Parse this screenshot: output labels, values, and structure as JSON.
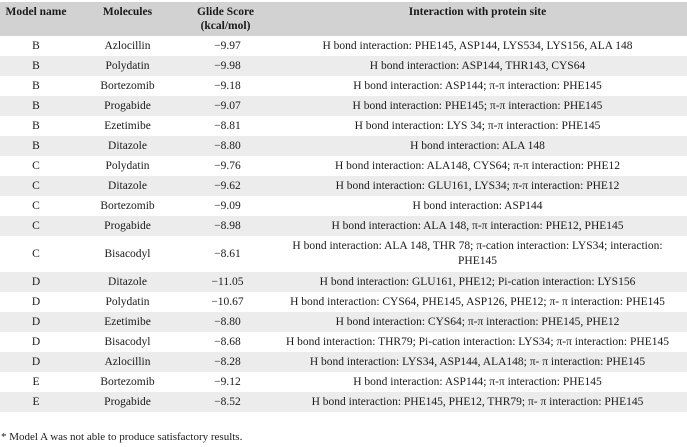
{
  "columns": [
    "Model name",
    "Molecules",
    "Glide Score (kcal/mol)",
    "Interaction with protein site"
  ],
  "rows": [
    {
      "model": "B",
      "molecule": "Azlocillin",
      "score": "−9.97",
      "interaction": "H bond interaction: PHE145, ASP144, LYS534, LYS156, ALA 148"
    },
    {
      "model": "B",
      "molecule": "Polydatin",
      "score": "−9.98",
      "interaction": "H bond interaction:  ASP144, THR143, CYS64"
    },
    {
      "model": "B",
      "molecule": "Bortezomib",
      "score": "−9.18",
      "interaction": "H bond interaction: ASP144; π-π interaction: PHE145"
    },
    {
      "model": "B",
      "molecule": "Progabide",
      "score": "−9.07",
      "interaction": "H bond interaction: PHE145; π-π interaction: PHE145"
    },
    {
      "model": "B",
      "molecule": "Ezetimibe",
      "score": "−8.81",
      "interaction": "H bond interaction: LYS 34; π-π interaction: PHE145"
    },
    {
      "model": "B",
      "molecule": "Ditazole",
      "score": "−8.80",
      "interaction": "H bond interaction: ALA 148"
    },
    {
      "model": "C",
      "molecule": "Polydatin",
      "score": "−9.76",
      "interaction": "H bond interaction: ALA148, CYS64; π-π interaction: PHE12"
    },
    {
      "model": "C",
      "molecule": "Ditazole",
      "score": "−9.62",
      "interaction": "H bond interaction: GLU161, LYS34; π-π interaction: PHE12"
    },
    {
      "model": "C",
      "molecule": "Bortezomib",
      "score": "−9.09",
      "interaction": "H bond interaction: ASP144"
    },
    {
      "model": "C",
      "molecule": "Progabide",
      "score": "−8.98",
      "interaction": "H bond interaction: ALA 148, π-π interaction: PHE12, PHE145"
    },
    {
      "model": "C",
      "molecule": "Bisacodyl",
      "score": "−8.61",
      "interaction": "H bond interaction: ALA 148, THR 78; π-cation interaction: LYS34; interaction: PHE145"
    },
    {
      "model": "D",
      "molecule": "Ditazole",
      "score": "−11.05",
      "interaction": "H bond interaction: GLU161, PHE12; Pi-cation interaction: LYS156"
    },
    {
      "model": "D",
      "molecule": "Polydatin",
      "score": "−10.67",
      "interaction": "H bond interaction: CYS64, PHE145, ASP126, PHE12; π- π interaction: PHE145"
    },
    {
      "model": "D",
      "molecule": "Ezetimibe",
      "score": "−8.80",
      "interaction": "H bond interaction: CYS64; π-π interaction: PHE145, PHE12"
    },
    {
      "model": "D",
      "molecule": "Bisacodyl",
      "score": "−8.68",
      "interaction": "H bond interaction: THR79; Pi-cation interaction: LYS34; π-π interaction: PHE145"
    },
    {
      "model": "D",
      "molecule": "Azlocillin",
      "score": "−8.28",
      "interaction": "H bond interaction: LYS34, ASP144, ALA148; π- π interaction: PHE145"
    },
    {
      "model": "E",
      "molecule": "Bortezomib",
      "score": "−9.12",
      "interaction": "H bond interaction: ASP144; π-π interaction: PHE145"
    },
    {
      "model": "E",
      "molecule": "Progabide",
      "score": "−8.52",
      "interaction": "H bond interaction: PHE145, PHE12, THR79; π- π interaction: PHE145"
    }
  ],
  "footnote": "* Model A was not able to produce satisfactory results."
}
